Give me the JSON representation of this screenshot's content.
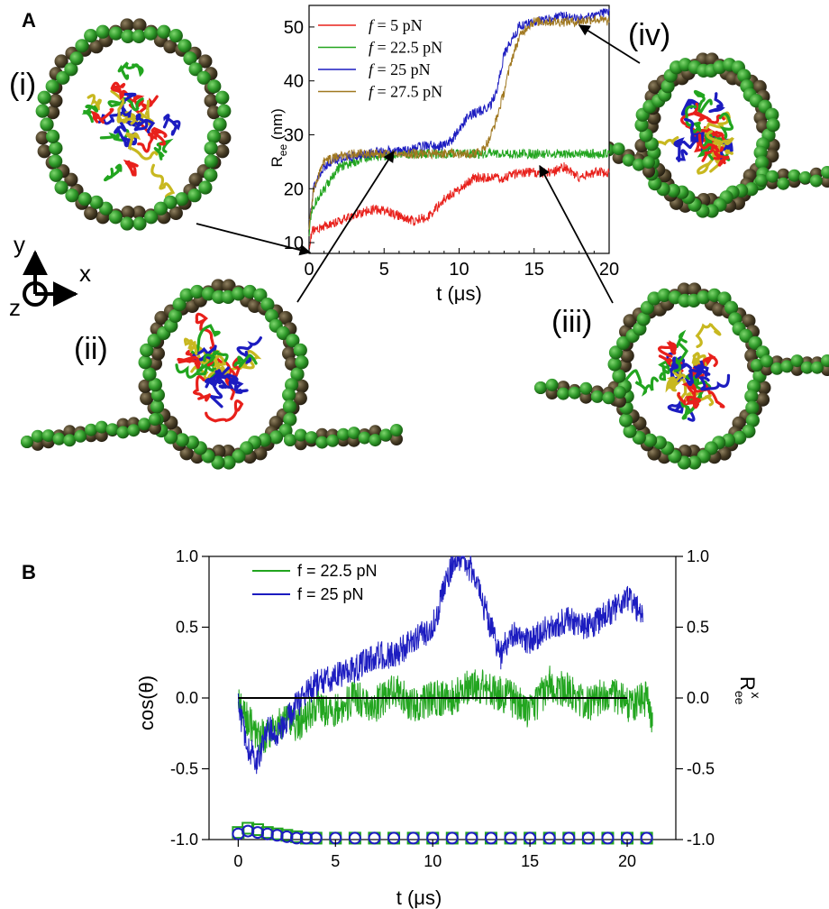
{
  "panel_a": {
    "letter": "A",
    "snapshots": [
      {
        "label": "(i)"
      },
      {
        "label": "(ii)"
      },
      {
        "label": "(iii)"
      },
      {
        "label": "(iv)"
      }
    ],
    "axes_glyph": {
      "y": "y",
      "x": "x",
      "z": "z"
    }
  },
  "panel_b": {
    "letter": "B"
  },
  "colors": {
    "red": "#e8201b",
    "green": "#22a51f",
    "blue": "#1c1cc0",
    "brown": "#a07820",
    "black": "#000000",
    "dna_green": "#2f9a2a",
    "dna_brown": "#4a3f27"
  },
  "chart_data": [
    {
      "type": "line",
      "xlabel": "t (μs)",
      "ylabel_main": "R",
      "ylabel_sub": "ee",
      "ylabel_unit": "(nm)",
      "xlim": [
        0,
        20
      ],
      "ylim": [
        8,
        54
      ],
      "xticks": [
        0,
        5,
        10,
        15,
        20
      ],
      "yticks": [
        10,
        20,
        30,
        40,
        50
      ],
      "legend_position": "top-left",
      "series": [
        {
          "name": "f = 5 pN",
          "legend_f": "f",
          "legend_rest": " = 5 pN",
          "color": "#e8201b",
          "x": [
            0,
            0.2,
            1,
            2,
            3,
            4,
            5,
            6,
            7,
            8,
            9,
            10,
            11,
            12,
            13,
            14,
            15,
            16,
            17,
            18,
            19,
            20
          ],
          "y": [
            9,
            12,
            13,
            14,
            15,
            16,
            16,
            15,
            14,
            15,
            18,
            20,
            22,
            22,
            22,
            23,
            23,
            23,
            24,
            22,
            23,
            23
          ]
        },
        {
          "name": "f = 22.5 pN",
          "legend_f": "f",
          "legend_rest": " = 22.5 pN",
          "color": "#22a51f",
          "x": [
            0,
            0.2,
            0.5,
            1,
            1.5,
            2,
            3,
            4,
            5,
            6,
            7,
            8,
            9,
            10,
            11,
            12,
            13,
            14,
            15,
            16,
            17,
            18,
            19,
            20
          ],
          "y": [
            12,
            16,
            18,
            20,
            22,
            24,
            25,
            26,
            26,
            26.5,
            26.5,
            26.5,
            26.5,
            26.5,
            26.5,
            26.5,
            26.5,
            26.5,
            26.5,
            26.5,
            26.5,
            26.5,
            26.5,
            26.5
          ]
        },
        {
          "name": "f = 25 pN",
          "legend_f": "f",
          "legend_rest": " = 25 pN",
          "color": "#1c1cc0",
          "x": [
            0,
            0.3,
            1,
            2,
            3,
            4,
            5,
            6,
            7,
            8,
            9,
            9.5,
            10,
            10.5,
            11,
            12,
            12.5,
            13,
            14,
            15,
            16,
            17,
            18,
            19,
            20
          ],
          "y": [
            14,
            20,
            24,
            25.5,
            26,
            26.5,
            27,
            27,
            27.5,
            28,
            28,
            29,
            31,
            33,
            34,
            35,
            38,
            45,
            50,
            51,
            51.5,
            52,
            51.5,
            52,
            53
          ]
        },
        {
          "name": "f = 27.5 pN",
          "legend_f": "f",
          "legend_rest": " = 27.5 pN",
          "color": "#a07820",
          "x": [
            0,
            0.3,
            1,
            2,
            3,
            4,
            5,
            6,
            7,
            8,
            9,
            10,
            11,
            11.5,
            12,
            12.5,
            13,
            13.5,
            14,
            14.5,
            15,
            16,
            17,
            18,
            19,
            20
          ],
          "y": [
            13,
            20,
            25,
            26,
            26.5,
            26.5,
            26.5,
            26.5,
            26.5,
            26.5,
            26.5,
            26.5,
            26.5,
            27,
            29,
            33,
            38,
            44,
            48,
            50,
            51,
            51,
            51,
            51,
            51.5,
            51
          ]
        }
      ]
    },
    {
      "type": "line",
      "xlabel": "t (μs)",
      "ylabel": "cos(θ)",
      "ylabel_right_main": "R",
      "ylabel_right_sub": "ee",
      "ylabel_right_sup": "x",
      "xlim": [
        -1.5,
        22.5
      ],
      "ylim": [
        -1.0,
        1.0
      ],
      "xticks": [
        0,
        5,
        10,
        15,
        20
      ],
      "yticks": [
        -1.0,
        -0.5,
        0.0,
        0.5,
        1.0
      ],
      "ytick_labels": [
        "-1.0",
        "-0.5",
        "0.0",
        "0.5",
        "1.0"
      ],
      "legend_position": "top-left",
      "series": [
        {
          "name": "f = 22.5 pN",
          "color": "#22a51f",
          "x": [
            0,
            0.5,
            1,
            1.5,
            2,
            2.5,
            3,
            4,
            5,
            6,
            7,
            8,
            9,
            10,
            11,
            12,
            13,
            14,
            15,
            16,
            17,
            18,
            19,
            20,
            21,
            21.3
          ],
          "y": [
            -0.05,
            -0.15,
            -0.3,
            -0.25,
            -0.2,
            -0.15,
            -0.2,
            -0.05,
            -0.1,
            0.0,
            -0.05,
            0.05,
            -0.05,
            0.0,
            0.0,
            0.1,
            0.05,
            0.0,
            -0.1,
            0.1,
            0.05,
            -0.05,
            0.05,
            -0.05,
            0.0,
            -0.2
          ]
        },
        {
          "name": "f = 25 pN",
          "color": "#1c1cc0",
          "x": [
            0,
            0.5,
            1,
            1.5,
            2,
            3,
            4,
            5,
            6,
            7,
            8,
            9,
            10,
            11,
            11.5,
            12,
            13,
            13.5,
            14,
            15,
            16,
            17,
            18,
            19,
            20,
            20.8
          ],
          "y": [
            -0.05,
            -0.35,
            -0.45,
            -0.2,
            -0.25,
            -0.05,
            0.1,
            0.15,
            0.2,
            0.3,
            0.3,
            0.4,
            0.5,
            0.95,
            1.0,
            0.9,
            0.5,
            0.3,
            0.45,
            0.4,
            0.5,
            0.55,
            0.5,
            0.6,
            0.7,
            0.6
          ]
        },
        {
          "name": "R_ee^x (f = 22.5 pN)",
          "color": "#22a51f",
          "marker": "square",
          "x": [
            0,
            0.5,
            1,
            1.5,
            2,
            2.5,
            3,
            3.5,
            4,
            5,
            6,
            7,
            8,
            9,
            10,
            11,
            12,
            13,
            14,
            15,
            16,
            17,
            18,
            19,
            20,
            21
          ],
          "y": [
            -0.95,
            -0.92,
            -0.93,
            -0.95,
            -0.96,
            -0.97,
            -0.98,
            -0.99,
            -0.99,
            -0.99,
            -0.99,
            -0.99,
            -0.99,
            -0.99,
            -0.99,
            -0.99,
            -0.99,
            -0.99,
            -0.99,
            -0.99,
            -0.99,
            -0.99,
            -0.99,
            -0.99,
            -0.99,
            -0.99
          ]
        },
        {
          "name": "R_ee^x (f = 25 pN)",
          "color": "#1c1cc0",
          "marker": "circle",
          "x": [
            0,
            0.5,
            1,
            1.5,
            2,
            2.5,
            3,
            3.5,
            4,
            5,
            6,
            7,
            8,
            9,
            10,
            11,
            12,
            13,
            14,
            15,
            16,
            17,
            18,
            19,
            20,
            21
          ],
          "y": [
            -0.96,
            -0.94,
            -0.95,
            -0.96,
            -0.97,
            -0.98,
            -0.99,
            -0.99,
            -0.99,
            -0.99,
            -0.99,
            -0.99,
            -0.99,
            -0.99,
            -0.99,
            -0.99,
            -0.99,
            -0.99,
            -0.99,
            -0.99,
            -0.99,
            -0.99,
            -0.99,
            -0.99,
            -0.99,
            -0.99
          ]
        },
        {
          "name": "zero reference",
          "color": "#000000",
          "x": [
            0,
            20
          ],
          "y": [
            0,
            0
          ]
        }
      ]
    }
  ]
}
